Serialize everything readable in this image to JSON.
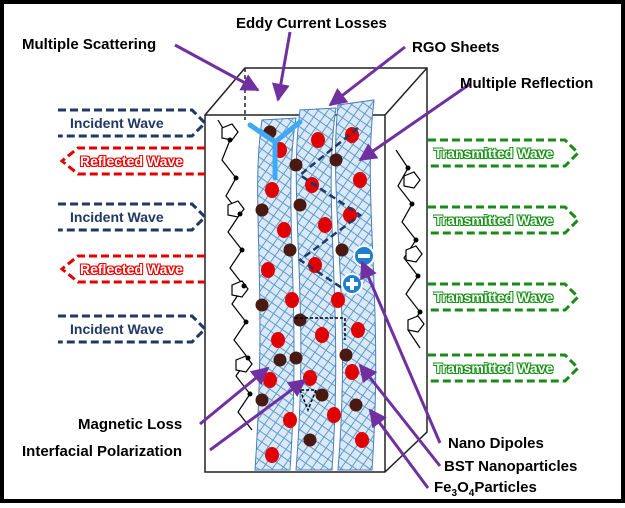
{
  "labels": {
    "eddy": "Eddy Current Losses",
    "scattering": "Multiple Scattering",
    "rgo": "RGO Sheets",
    "reflection": "Multiple Reflection",
    "magnetic": "Magnetic Loss",
    "interfacial": "Interfacial Polarization",
    "dipoles": "Nano Dipoles",
    "bst": "BST Nanoparticles",
    "fe_pre": "Fe",
    "fe_sub1": "3",
    "fe_mid": "O",
    "fe_sub2": "4",
    "fe_post": "Particles"
  },
  "waves_left": [
    {
      "label": "Incident Wave",
      "kind": "incident"
    },
    {
      "label": "Reflected Wave",
      "kind": "reflected"
    },
    {
      "label": "Incident Wave",
      "kind": "incident"
    },
    {
      "label": "Reflected Wave",
      "kind": "reflected"
    },
    {
      "label": "Incident Wave",
      "kind": "incident"
    }
  ],
  "waves_right": [
    {
      "label": "Transmitted Wave"
    },
    {
      "label": "Transmitted Wave"
    },
    {
      "label": "Transmitted Wave"
    },
    {
      "label": "Transmitted Wave"
    }
  ],
  "colors": {
    "incident": "#1f3864",
    "reflected": "#e00000",
    "transmitted": "#1a8a1a",
    "pointer": "#7030a0",
    "particle": "#e00000",
    "nano": "#4a1a10",
    "sheet": "#6aa8d8"
  }
}
